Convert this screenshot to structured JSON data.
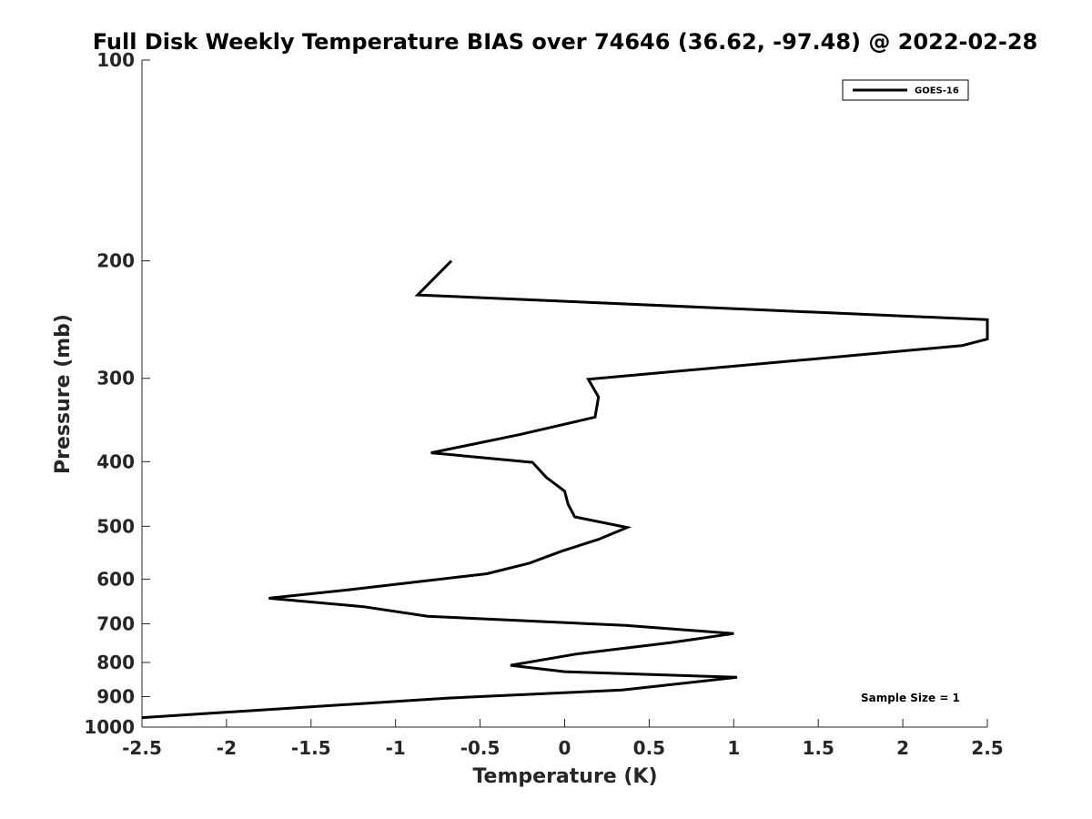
{
  "chart_data": {
    "type": "line",
    "title": "Full Disk Weekly Temperature BIAS over 74646 (36.62, -97.48) @ 2022-02-28",
    "xlabel": "Temperature (K)",
    "ylabel": "Pressure (mb)",
    "xlim": [
      -2.5,
      2.5
    ],
    "ylim": [
      1000,
      100
    ],
    "yscale": "log",
    "x_ticks": [
      "-2.5",
      "-2",
      "-1.5",
      "-1",
      "-0.5",
      "0",
      "0.5",
      "1",
      "1.5",
      "2",
      "2.5"
    ],
    "y_ticks": [
      "100",
      "200",
      "300",
      "400",
      "500",
      "600",
      "700",
      "800",
      "900",
      "1000"
    ],
    "grid": false,
    "legend_position": "top-right",
    "series": [
      {
        "name": "GOES-16",
        "color": "#000000",
        "points": [
          {
            "x": -0.67,
            "y": 200
          },
          {
            "x": -0.87,
            "y": 225
          },
          {
            "x": 2.5,
            "y": 245
          },
          {
            "x": 2.5,
            "y": 262
          },
          {
            "x": 2.35,
            "y": 268
          },
          {
            "x": 0.14,
            "y": 301
          },
          {
            "x": 0.2,
            "y": 320
          },
          {
            "x": 0.18,
            "y": 343
          },
          {
            "x": -0.26,
            "y": 364
          },
          {
            "x": -0.79,
            "y": 388
          },
          {
            "x": -0.19,
            "y": 401
          },
          {
            "x": -0.11,
            "y": 422
          },
          {
            "x": 0.0,
            "y": 443
          },
          {
            "x": 0.02,
            "y": 463
          },
          {
            "x": 0.06,
            "y": 484
          },
          {
            "x": 0.37,
            "y": 502
          },
          {
            "x": 0.2,
            "y": 523
          },
          {
            "x": -0.02,
            "y": 545
          },
          {
            "x": -0.21,
            "y": 568
          },
          {
            "x": -0.46,
            "y": 589
          },
          {
            "x": -1.26,
            "y": 622
          },
          {
            "x": -1.75,
            "y": 641
          },
          {
            "x": -1.19,
            "y": 660
          },
          {
            "x": -0.81,
            "y": 682
          },
          {
            "x": 0.36,
            "y": 704
          },
          {
            "x": 1.0,
            "y": 724
          },
          {
            "x": 0.63,
            "y": 747
          },
          {
            "x": 0.07,
            "y": 777
          },
          {
            "x": -0.32,
            "y": 808
          },
          {
            "x": 0.0,
            "y": 826
          },
          {
            "x": 1.02,
            "y": 842
          },
          {
            "x": 0.34,
            "y": 880
          },
          {
            "x": -0.7,
            "y": 905
          },
          {
            "x": -2.5,
            "y": 968
          }
        ]
      }
    ],
    "annotations": [
      "Sample Size = 1"
    ]
  }
}
